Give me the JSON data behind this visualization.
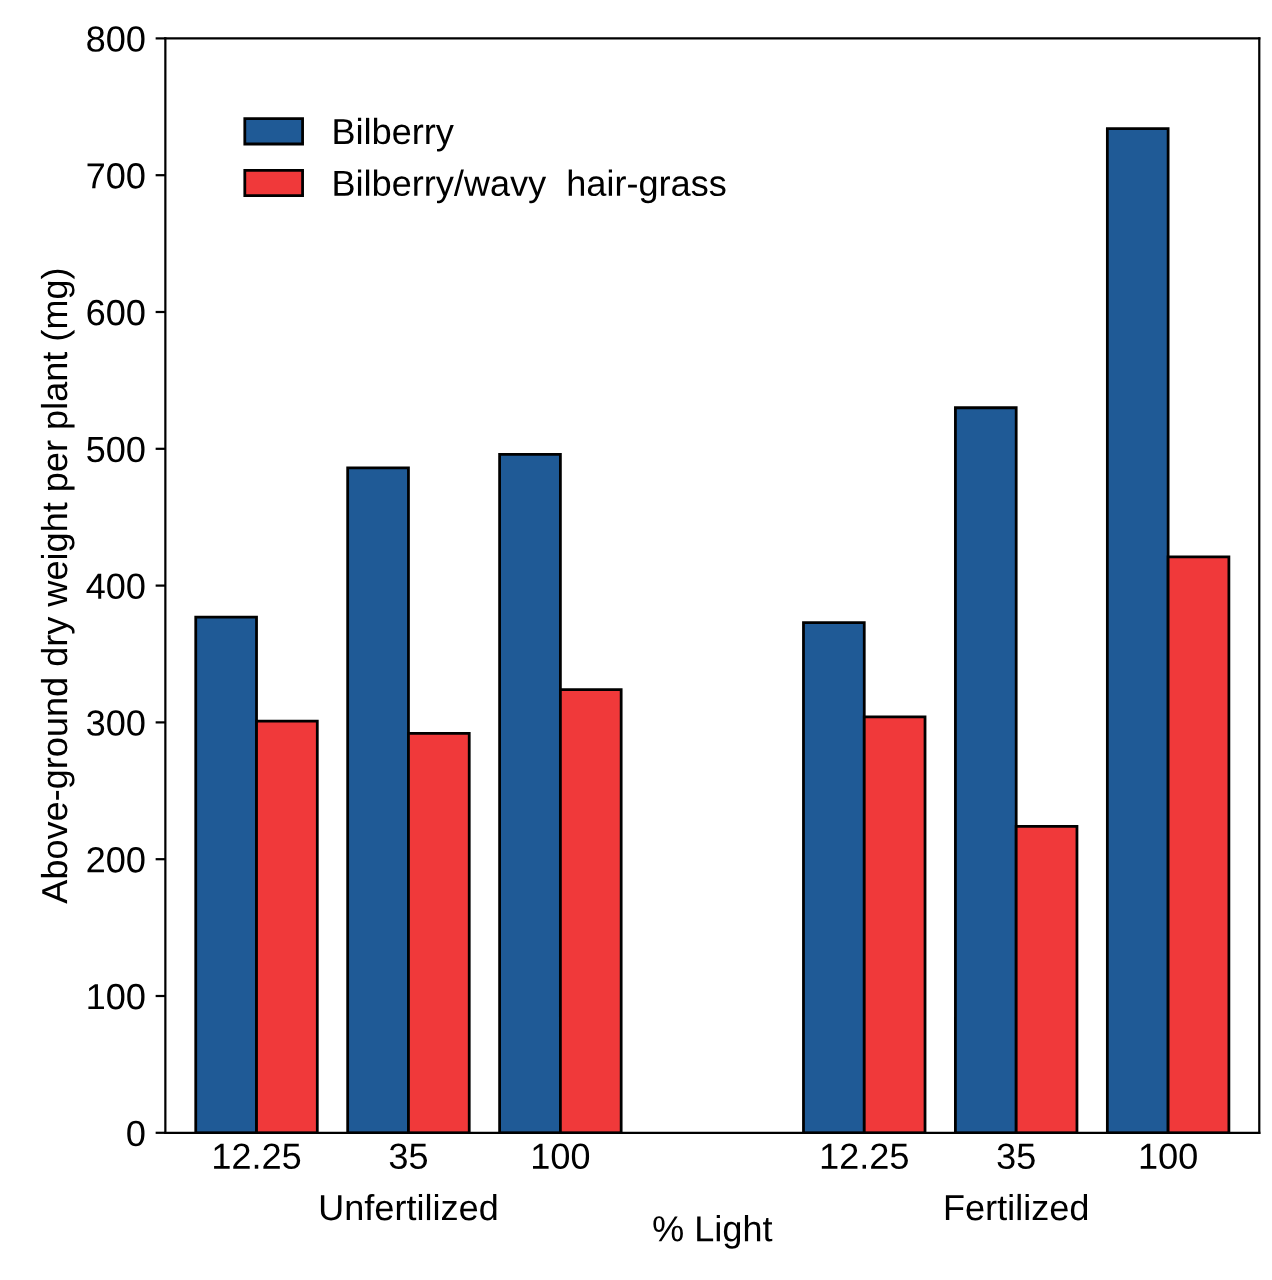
{
  "chart_data": {
    "type": "bar",
    "xlabel": "% Light",
    "ylabel": "Above-ground dry weight per plant (mg)",
    "categories": [
      "12.25",
      "35",
      "100",
      null,
      "12.25",
      "35",
      "100"
    ],
    "series": [
      {
        "name": "Bilberry",
        "color": "#1f5a96",
        "values": [
          377,
          486,
          496,
          null,
          373,
          530,
          734
        ]
      },
      {
        "name": "Bilberry/wavy  hair-grass",
        "color": "#f0393a",
        "values": [
          301,
          292,
          324,
          null,
          304,
          224,
          421
        ]
      }
    ],
    "ylim": [
      0,
      800
    ],
    "yticks": [
      0,
      100,
      200,
      300,
      400,
      500,
      600,
      700,
      800
    ],
    "annotations": [
      "Unfertilized",
      "Fertilized"
    ],
    "legend": "top left",
    "grid": false
  }
}
